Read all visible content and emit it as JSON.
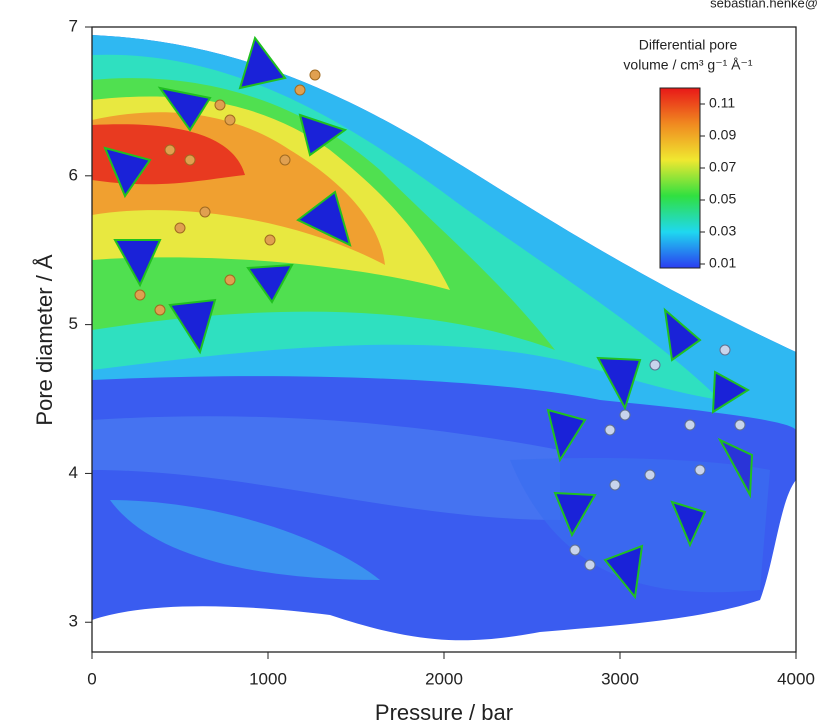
{
  "chart_data": {
    "type": "contour",
    "corner_text": "sebastian.henke@",
    "x_label": "Pressure / bar",
    "y_label": "Pore diameter / Å",
    "xlim": [
      0,
      4000
    ],
    "xticks": [
      0,
      1000,
      2000,
      3000,
      4000
    ],
    "ylim": [
      2.8,
      7
    ],
    "yticks": [
      3,
      4,
      5,
      6,
      7
    ],
    "colorbar": {
      "title_lines": [
        "Differential pore",
        "volume / cm³ g⁻¹ Å⁻¹"
      ],
      "lim": [
        0.0075,
        0.12
      ],
      "ticks": [
        0.11,
        0.09,
        0.07,
        0.05,
        0.03,
        0.01
      ],
      "colors": [
        "#2a3df0",
        "#1fd8f0",
        "#30e040",
        "#f0e830",
        "#f08a20",
        "#e81818"
      ]
    }
  }
}
